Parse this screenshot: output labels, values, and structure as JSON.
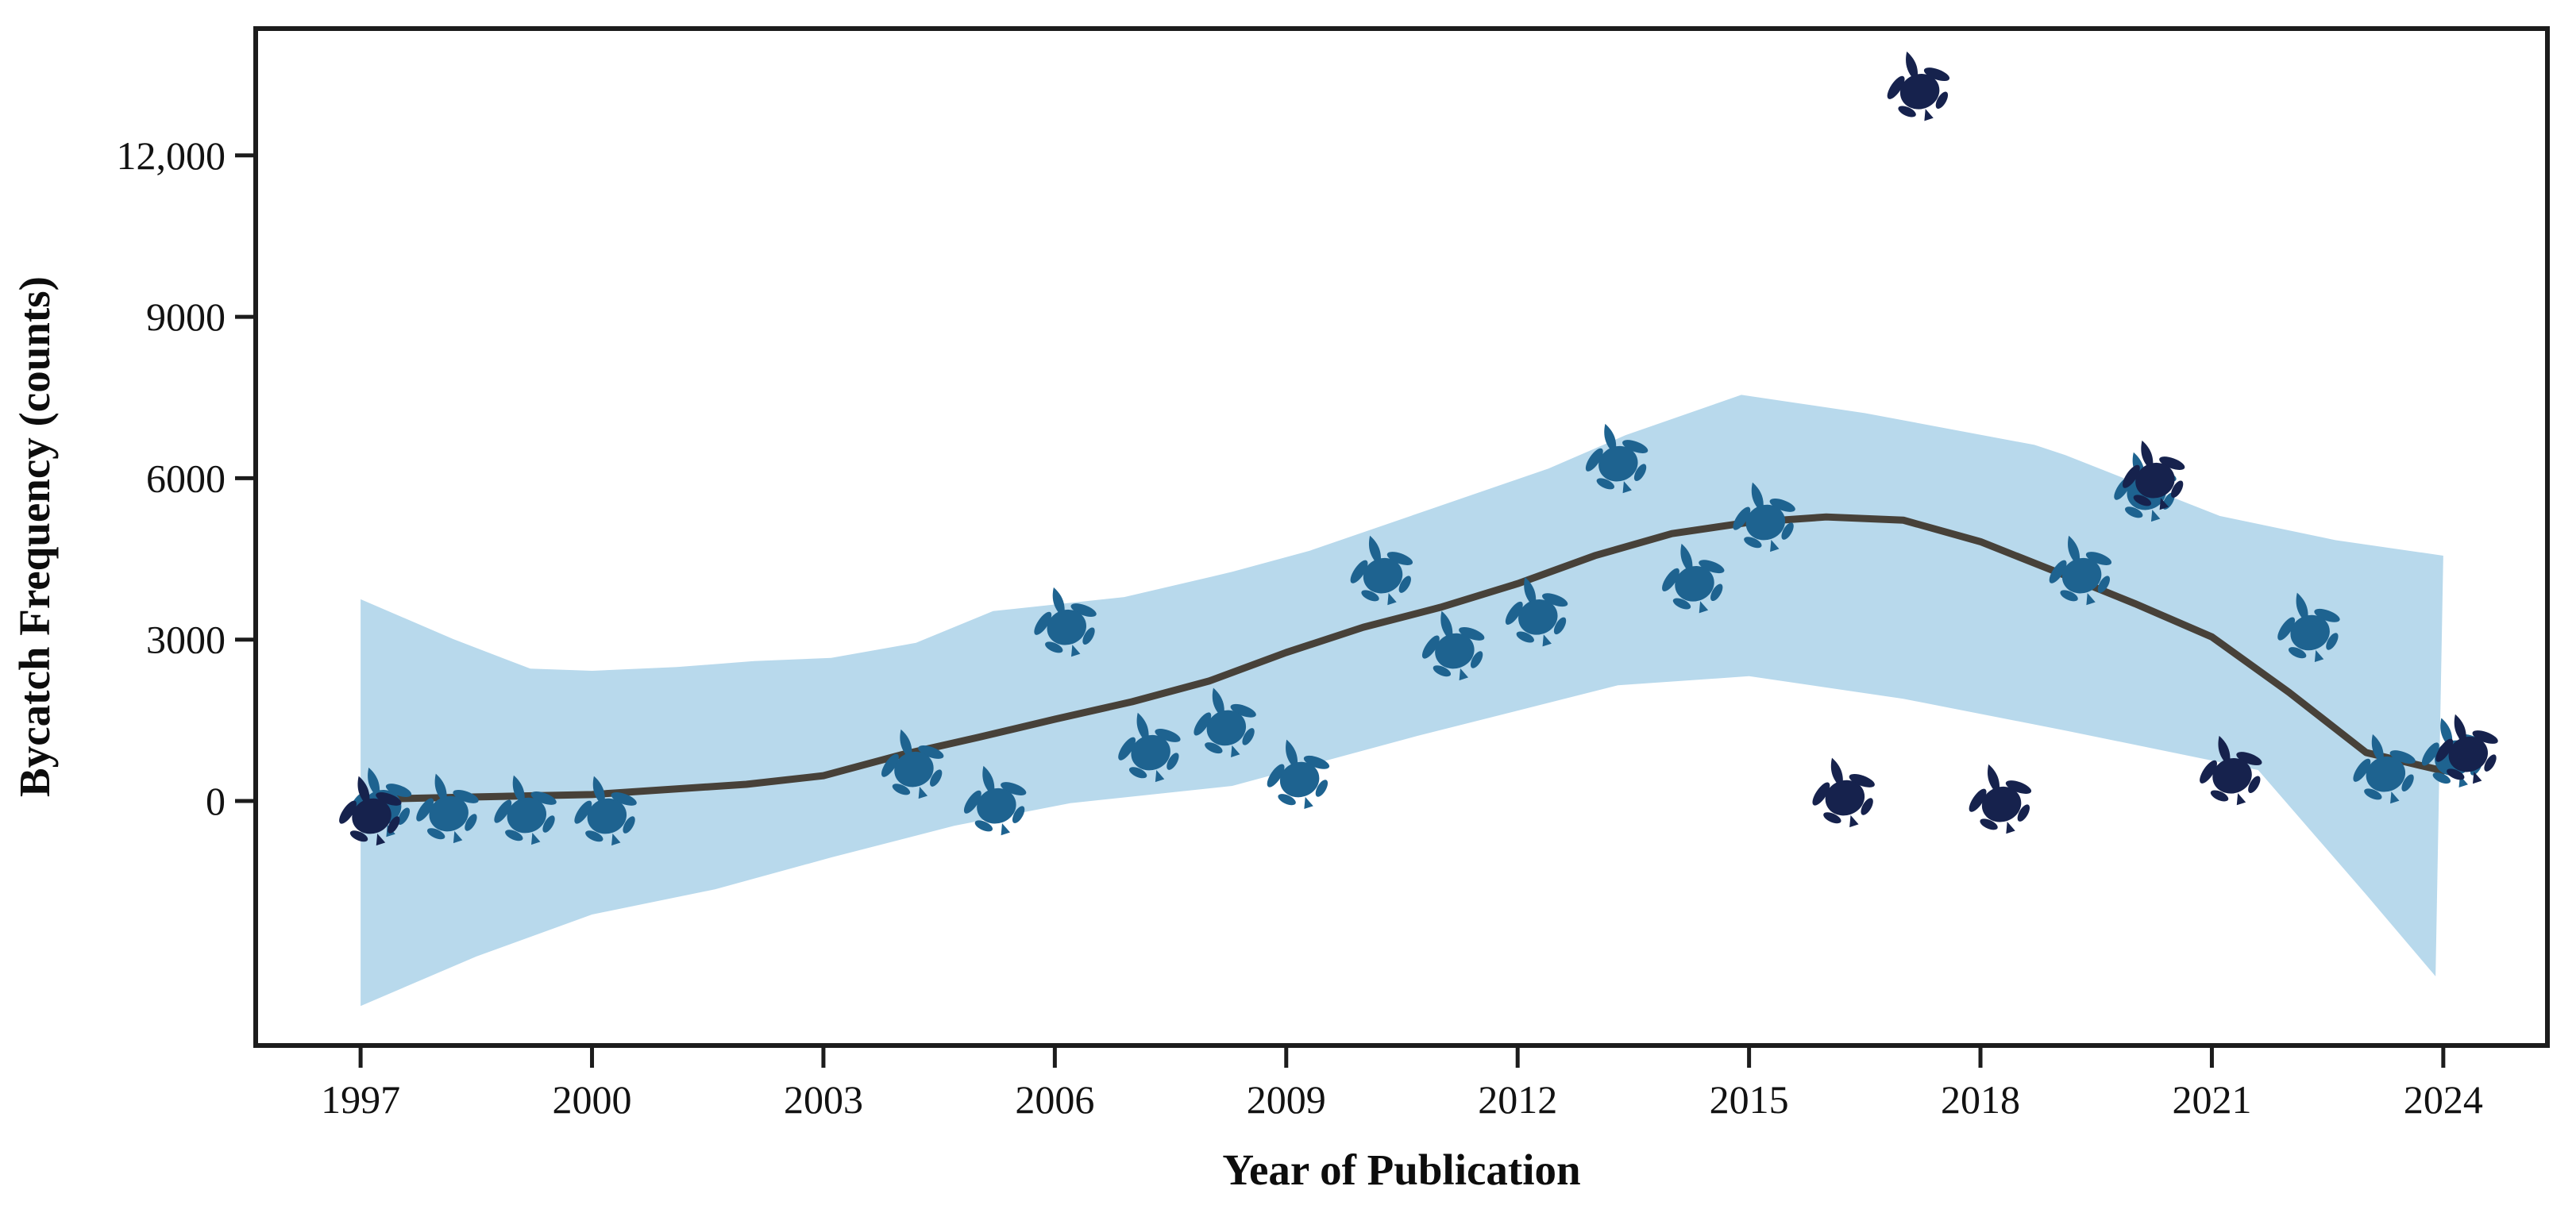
{
  "chart_data": {
    "type": "scatter",
    "title": "",
    "xlabel": "Year of Publication",
    "ylabel": "Bycatch Frequency (counts)",
    "marker": "sea-turtle-icon",
    "grid": false,
    "legend": "none",
    "xlim": [
      1995.64,
      2025.35
    ],
    "ylim": [
      -4545,
      14358
    ],
    "x_ticks": [
      {
        "label": "1997",
        "year": 1997
      },
      {
        "label": "2000",
        "year": 2000
      },
      {
        "label": "2003",
        "year": 2003
      },
      {
        "label": "2006",
        "year": 2006
      },
      {
        "label": "2009",
        "year": 2009
      },
      {
        "label": "2012",
        "year": 2012
      },
      {
        "label": "2015",
        "year": 2015
      },
      {
        "label": "2018",
        "year": 2018
      },
      {
        "label": "2021",
        "year": 2021
      },
      {
        "label": "2024",
        "year": 2024
      }
    ],
    "y_ticks": [
      {
        "label": "12,000",
        "value": 12000
      },
      {
        "label": "9000",
        "value": 9000
      },
      {
        "label": "6000",
        "value": 6000
      },
      {
        "label": "3000",
        "value": 3000
      },
      {
        "label": "0",
        "value": 0
      }
    ],
    "colors": {
      "point_blue": "#1e6390",
      "point_navy": "#16224d",
      "band": "#b8d9ec",
      "trend_line": "#474139",
      "axis": "#1c1c1c",
      "background": "#ffffff"
    },
    "points": [
      {
        "year": 1997.05,
        "value": 100,
        "color": "blue"
      },
      {
        "year": 1996.92,
        "value": -60,
        "color": "navy"
      },
      {
        "year": 1997.92,
        "value": -15,
        "color": "blue"
      },
      {
        "year": 1998.93,
        "value": -45,
        "color": "blue"
      },
      {
        "year": 1999.97,
        "value": -60,
        "color": "blue"
      },
      {
        "year": 2003.95,
        "value": 810,
        "color": "blue"
      },
      {
        "year": 2005.02,
        "value": 130,
        "color": "blue"
      },
      {
        "year": 2005.93,
        "value": 3450,
        "color": "blue"
      },
      {
        "year": 2007.02,
        "value": 1120,
        "color": "blue"
      },
      {
        "year": 2008.0,
        "value": 1580,
        "color": "blue"
      },
      {
        "year": 2008.95,
        "value": 620,
        "color": "blue"
      },
      {
        "year": 2010.03,
        "value": 4410,
        "color": "blue"
      },
      {
        "year": 2010.96,
        "value": 3010,
        "color": "blue"
      },
      {
        "year": 2012.04,
        "value": 3640,
        "color": "blue"
      },
      {
        "year": 2013.08,
        "value": 6490,
        "color": "blue"
      },
      {
        "year": 2014.07,
        "value": 4260,
        "color": "blue"
      },
      {
        "year": 2014.99,
        "value": 5400,
        "color": "blue"
      },
      {
        "year": 2016.02,
        "value": 280,
        "color": "navy"
      },
      {
        "year": 2016.99,
        "value": 13410,
        "color": "navy"
      },
      {
        "year": 2018.05,
        "value": 160,
        "color": "navy"
      },
      {
        "year": 2019.09,
        "value": 4410,
        "color": "blue"
      },
      {
        "year": 2019.93,
        "value": 5960,
        "color": "blue"
      },
      {
        "year": 2020.04,
        "value": 6180,
        "color": "navy"
      },
      {
        "year": 2021.04,
        "value": 690,
        "color": "navy"
      },
      {
        "year": 2022.05,
        "value": 3350,
        "color": "blue"
      },
      {
        "year": 2023.03,
        "value": 720,
        "color": "blue"
      },
      {
        "year": 2023.92,
        "value": 1020,
        "color": "blue"
      },
      {
        "year": 2024.1,
        "value": 1090,
        "color": "navy"
      }
    ],
    "trend_line": [
      {
        "year": 1997.0,
        "value": 30
      },
      {
        "year": 1998.5,
        "value": 75
      },
      {
        "year": 2000.0,
        "value": 120
      },
      {
        "year": 2002.0,
        "value": 310
      },
      {
        "year": 2003.0,
        "value": 470
      },
      {
        "year": 2004.0,
        "value": 855
      },
      {
        "year": 2005.0,
        "value": 1180
      },
      {
        "year": 2006.0,
        "value": 1520
      },
      {
        "year": 2007.0,
        "value": 1845
      },
      {
        "year": 2008.0,
        "value": 2230
      },
      {
        "year": 2009.0,
        "value": 2760
      },
      {
        "year": 2010.0,
        "value": 3230
      },
      {
        "year": 2011.0,
        "value": 3600
      },
      {
        "year": 2012.0,
        "value": 4040
      },
      {
        "year": 2013.0,
        "value": 4560
      },
      {
        "year": 2014.0,
        "value": 4970
      },
      {
        "year": 2015.0,
        "value": 5180
      },
      {
        "year": 2016.0,
        "value": 5280
      },
      {
        "year": 2017.0,
        "value": 5220
      },
      {
        "year": 2018.0,
        "value": 4820
      },
      {
        "year": 2019.0,
        "value": 4250
      },
      {
        "year": 2020.0,
        "value": 3670
      },
      {
        "year": 2021.0,
        "value": 3050
      },
      {
        "year": 2022.0,
        "value": 2020
      },
      {
        "year": 2023.0,
        "value": 900
      },
      {
        "year": 2024.0,
        "value": 560
      }
    ],
    "confidence_band": {
      "upper": [
        {
          "year": 1997.0,
          "value": 3750
        },
        {
          "year": 1998.2,
          "value": 3010
        },
        {
          "year": 1999.2,
          "value": 2460
        },
        {
          "year": 2000.0,
          "value": 2420
        },
        {
          "year": 2001.1,
          "value": 2490
        },
        {
          "year": 2002.1,
          "value": 2600
        },
        {
          "year": 2003.1,
          "value": 2660
        },
        {
          "year": 2004.2,
          "value": 2940
        },
        {
          "year": 2005.2,
          "value": 3530
        },
        {
          "year": 2006.9,
          "value": 3790
        },
        {
          "year": 2008.3,
          "value": 4260
        },
        {
          "year": 2009.3,
          "value": 4650
        },
        {
          "year": 2010.9,
          "value": 5440
        },
        {
          "year": 2012.4,
          "value": 6180
        },
        {
          "year": 2013.4,
          "value": 6800
        },
        {
          "year": 2014.9,
          "value": 7550
        },
        {
          "year": 2016.5,
          "value": 7210
        },
        {
          "year": 2018.7,
          "value": 6620
        },
        {
          "year": 2019.1,
          "value": 6430
        },
        {
          "year": 2021.1,
          "value": 5300
        },
        {
          "year": 2022.6,
          "value": 4850
        },
        {
          "year": 2024.0,
          "value": 4560
        }
      ],
      "lower": [
        {
          "year": 1997.0,
          "value": -3810
        },
        {
          "year": 1998.5,
          "value": -2890
        },
        {
          "year": 2000.0,
          "value": -2110
        },
        {
          "year": 2001.6,
          "value": -1640
        },
        {
          "year": 2003.1,
          "value": -1050
        },
        {
          "year": 2004.7,
          "value": -460
        },
        {
          "year": 2006.2,
          "value": -40
        },
        {
          "year": 2008.3,
          "value": 280
        },
        {
          "year": 2010.7,
          "value": 1210
        },
        {
          "year": 2013.3,
          "value": 2150
        },
        {
          "year": 2015.0,
          "value": 2320
        },
        {
          "year": 2017.0,
          "value": 1900
        },
        {
          "year": 2019.1,
          "value": 1310
        },
        {
          "year": 2021.6,
          "value": 575
        },
        {
          "year": 2023.0,
          "value": -1740
        },
        {
          "year": 2023.9,
          "value": -3260
        }
      ]
    }
  }
}
